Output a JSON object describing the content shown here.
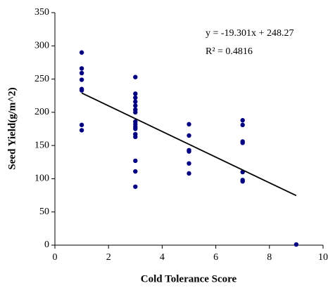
{
  "chart_data": {
    "type": "scatter",
    "xlabel": "Cold Tolerance Score",
    "ylabel": "Seed Yield(g/m^2)",
    "xlim": [
      0,
      10
    ],
    "xticks": [
      0,
      2,
      4,
      6,
      8,
      10
    ],
    "ylim": [
      0,
      350
    ],
    "yticks": [
      0,
      50,
      100,
      150,
      200,
      250,
      300,
      350
    ],
    "grid": false,
    "series": [
      {
        "color": "#000080",
        "x": [
          1,
          1,
          1,
          1,
          1,
          1,
          1,
          1,
          3,
          3,
          3,
          3,
          3,
          3,
          3,
          3,
          3,
          3,
          3,
          3,
          3,
          3,
          3,
          3,
          5,
          5,
          5,
          5,
          5,
          5,
          7,
          7,
          7,
          7,
          7,
          7,
          7,
          9
        ],
        "values": [
          290,
          266,
          259,
          249,
          235,
          233,
          181,
          173,
          253,
          228,
          222,
          216,
          210,
          204,
          200,
          186,
          182,
          178,
          175,
          167,
          163,
          127,
          111,
          88,
          182,
          165,
          143,
          141,
          123,
          108,
          188,
          181,
          156,
          154,
          110,
          98,
          96,
          1
        ]
      }
    ],
    "trendline": {
      "color": "#000000",
      "x": [
        1,
        9
      ],
      "values": [
        228.969,
        74.561
      ]
    },
    "annotations": [
      "y = -19.301x + 248.27",
      "R² = 0.4816"
    ]
  }
}
